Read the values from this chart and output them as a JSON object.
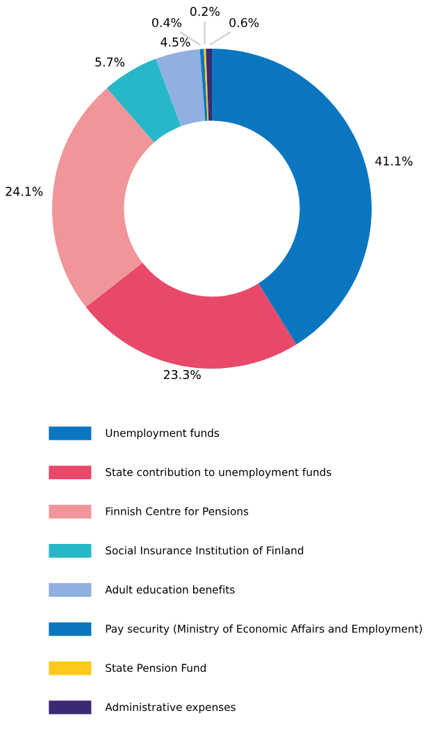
{
  "chart_data": {
    "type": "donut",
    "categories": [
      "Unemployment funds",
      "State contribution to unemployment funds",
      "Finnish Centre for Pensions",
      "Social Insurance Institution of Finland",
      "Adult education benefits",
      "Pay security (Ministry of Economic Affairs and Employment)",
      "State Pension Fund",
      "Administrative expenses"
    ],
    "values": [
      41.1,
      23.3,
      24.1,
      5.7,
      4.5,
      0.4,
      0.2,
      0.6
    ],
    "value_labels": [
      "41.1%",
      "23.3%",
      "24.1%",
      "5.7%",
      "4.5%",
      "0.4%",
      "0.2%",
      "0.6%"
    ],
    "colors": [
      "#0a76c0",
      "#e8486a",
      "#f0969a",
      "#26b8c8",
      "#8fb0e0",
      "#0a76c0",
      "#ffc91c",
      "#3b2a72"
    ],
    "legend": "bottom"
  }
}
